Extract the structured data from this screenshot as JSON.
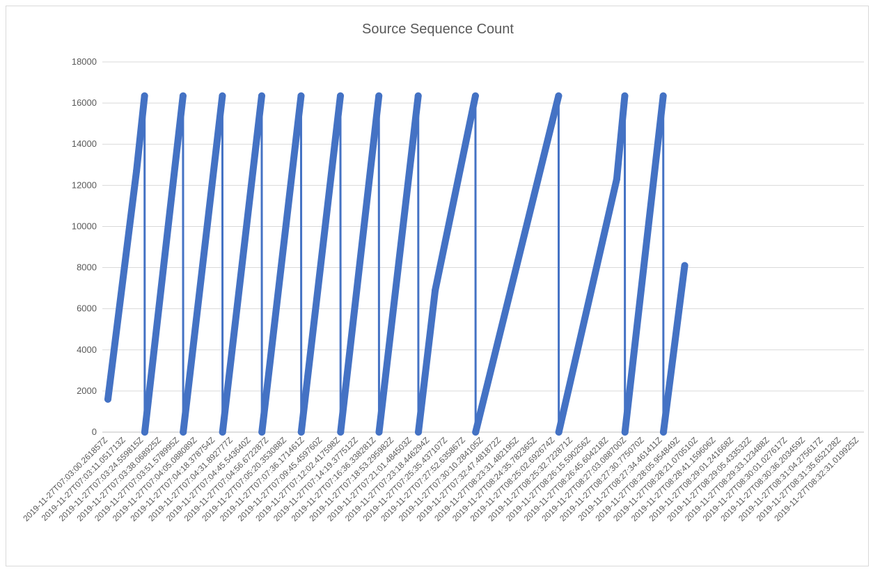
{
  "chart_data": {
    "type": "line",
    "title": "Source Sequence Count",
    "xlabel": "",
    "ylabel": "",
    "ylim": [
      0,
      18000
    ],
    "yticks": [
      0,
      2000,
      4000,
      6000,
      8000,
      10000,
      12000,
      14000,
      16000,
      18000
    ],
    "grid": true,
    "legend": "none",
    "color": "#4472c4",
    "categories": [
      "2019-11-27T07:03:00.261857Z",
      "2019-11-27T07:03:11.051713Z",
      "2019-11-27T07:03:24.559815Z",
      "2019-11-27T07:03:38.068925Z",
      "2019-11-27T07:03:51.578995Z",
      "2019-11-27T07:04:05.088089Z",
      "2019-11-27T07:04:18.378754Z",
      "2019-11-27T07:04:31.892777Z",
      "2019-11-27T07:04:45.543640Z",
      "2019-11-27T07:04:56.672287Z",
      "2019-11-27T07:05:20.353088Z",
      "2019-11-27T07:07:36.171461Z",
      "2019-11-27T07:09:45.459760Z",
      "2019-11-27T07:12:02.417598Z",
      "2019-11-27T07:14:19.377512Z",
      "2019-11-27T07:16:36.338281Z",
      "2019-11-27T07:18:53.295982Z",
      "2019-11-27T07:21:01.484503Z",
      "2019-11-27T07:23:18.446294Z",
      "2019-11-27T07:25:35.437107Z",
      "2019-11-27T07:27:52.635867Z",
      "2019-11-27T07:30:10.284105Z",
      "2019-11-27T07:32:47.481872Z",
      "2019-11-27T08:23:31.482195Z",
      "2019-11-27T08:24:35.782365Z",
      "2019-11-27T08:25:02.692674Z",
      "2019-11-27T08:25:32.722871Z",
      "2019-11-27T08:26:15.590256Z",
      "2019-11-27T08:26:45.604218Z",
      "2019-11-27T08:27:03.088700Z",
      "2019-11-27T08:27:30.775070Z",
      "2019-11-27T08:27:34.461411Z",
      "2019-11-27T08:28:05.954849Z",
      "2019-11-27T08:28:21.070510Z",
      "2019-11-27T08:28:41.159606Z",
      "2019-11-27T08:29:01.241668Z",
      "2019-11-27T08:29:05.433532Z",
      "2019-11-27T08:29:33.123488Z",
      "2019-11-27T08:30:01.027617Z",
      "2019-11-27T08:30:36.203459Z",
      "2019-11-27T08:31:04.275617Z",
      "2019-11-27T08:31:35.652128Z",
      "2019-11-27T08:32:31.019925Z"
    ],
    "series": [
      {
        "points": [
          {
            "x": 0.0,
            "y": 1600
          },
          {
            "x": 1.6,
            "y": 12700
          },
          {
            "x": 2.05,
            "y": 16350
          },
          {
            "x": 2.06,
            "y": 0
          },
          {
            "x": 4.2,
            "y": 16350
          },
          {
            "x": 4.21,
            "y": 0
          },
          {
            "x": 6.4,
            "y": 16350
          },
          {
            "x": 6.41,
            "y": 0
          },
          {
            "x": 8.6,
            "y": 16350
          },
          {
            "x": 8.61,
            "y": 0
          },
          {
            "x": 10.8,
            "y": 16350
          },
          {
            "x": 10.81,
            "y": 0
          },
          {
            "x": 13.0,
            "y": 16350
          },
          {
            "x": 13.01,
            "y": 0
          },
          {
            "x": 15.15,
            "y": 16350
          },
          {
            "x": 15.16,
            "y": 0
          },
          {
            "x": 17.35,
            "y": 16350
          },
          {
            "x": 17.36,
            "y": 0
          },
          {
            "x": 18.3,
            "y": 6900
          },
          {
            "x": 20.55,
            "y": 16350
          },
          {
            "x": 20.56,
            "y": 0
          },
          {
            "x": 25.2,
            "y": 16350
          },
          {
            "x": 25.21,
            "y": 0
          },
          {
            "x": 28.45,
            "y": 12300
          },
          {
            "x": 28.9,
            "y": 16350
          },
          {
            "x": 28.91,
            "y": 0
          },
          {
            "x": 31.05,
            "y": 16350
          },
          {
            "x": 31.06,
            "y": 0
          },
          {
            "x": 32.25,
            "y": 8100
          }
        ]
      }
    ]
  }
}
